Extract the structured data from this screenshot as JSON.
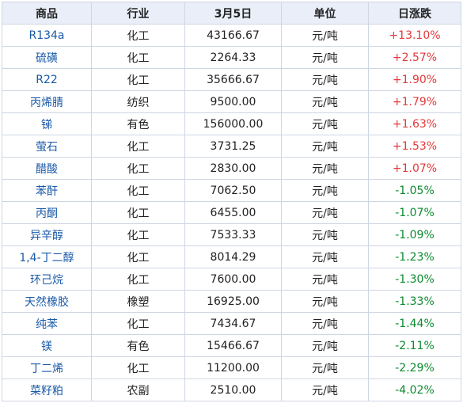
{
  "table": {
    "headers": {
      "name": "商品",
      "industry": "行业",
      "date": "3月5日",
      "unit": "单位",
      "change": "日涨跌"
    },
    "colors": {
      "up": "#e4393c",
      "down": "#0a8a2e",
      "link": "#1a5aa8",
      "header_bg": "#e9eef8",
      "border": "#cfd6e3"
    },
    "rows": [
      {
        "name": "R134a",
        "industry": "化工",
        "price": "43166.67",
        "unit": "元/吨",
        "change": "+13.10%",
        "direction": "up"
      },
      {
        "name": "硫磺",
        "industry": "化工",
        "price": "2264.33",
        "unit": "元/吨",
        "change": "+2.57%",
        "direction": "up"
      },
      {
        "name": "R22",
        "industry": "化工",
        "price": "35666.67",
        "unit": "元/吨",
        "change": "+1.90%",
        "direction": "up"
      },
      {
        "name": "丙烯腈",
        "industry": "纺织",
        "price": "9500.00",
        "unit": "元/吨",
        "change": "+1.79%",
        "direction": "up"
      },
      {
        "name": "锑",
        "industry": "有色",
        "price": "156000.00",
        "unit": "元/吨",
        "change": "+1.63%",
        "direction": "up"
      },
      {
        "name": "萤石",
        "industry": "化工",
        "price": "3731.25",
        "unit": "元/吨",
        "change": "+1.53%",
        "direction": "up"
      },
      {
        "name": "醋酸",
        "industry": "化工",
        "price": "2830.00",
        "unit": "元/吨",
        "change": "+1.07%",
        "direction": "up"
      },
      {
        "name": "苯酐",
        "industry": "化工",
        "price": "7062.50",
        "unit": "元/吨",
        "change": "-1.05%",
        "direction": "down"
      },
      {
        "name": "丙酮",
        "industry": "化工",
        "price": "6455.00",
        "unit": "元/吨",
        "change": "-1.07%",
        "direction": "down"
      },
      {
        "name": "异辛醇",
        "industry": "化工",
        "price": "7533.33",
        "unit": "元/吨",
        "change": "-1.09%",
        "direction": "down"
      },
      {
        "name": "1,4-丁二醇",
        "industry": "化工",
        "price": "8014.29",
        "unit": "元/吨",
        "change": "-1.23%",
        "direction": "down"
      },
      {
        "name": "环己烷",
        "industry": "化工",
        "price": "7600.00",
        "unit": "元/吨",
        "change": "-1.30%",
        "direction": "down"
      },
      {
        "name": "天然橡胶",
        "industry": "橡塑",
        "price": "16925.00",
        "unit": "元/吨",
        "change": "-1.33%",
        "direction": "down"
      },
      {
        "name": "纯苯",
        "industry": "化工",
        "price": "7434.67",
        "unit": "元/吨",
        "change": "-1.44%",
        "direction": "down"
      },
      {
        "name": "镁",
        "industry": "有色",
        "price": "15466.67",
        "unit": "元/吨",
        "change": "-2.11%",
        "direction": "down"
      },
      {
        "name": "丁二烯",
        "industry": "化工",
        "price": "11200.00",
        "unit": "元/吨",
        "change": "-2.29%",
        "direction": "down"
      },
      {
        "name": "菜籽粕",
        "industry": "农副",
        "price": "2510.00",
        "unit": "元/吨",
        "change": "-4.02%",
        "direction": "down"
      }
    ]
  }
}
